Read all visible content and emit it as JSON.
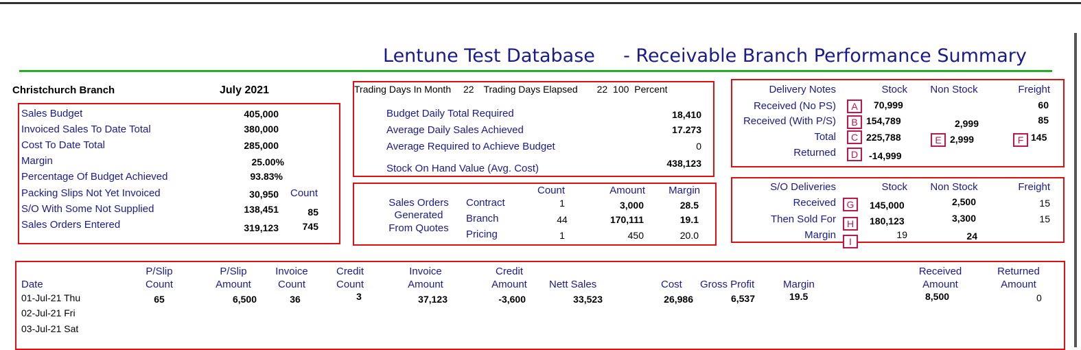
{
  "header": {
    "db_name": "Lentune Test Database",
    "report_title": "- Receivable Branch Performance Summary",
    "accent": "#1a1a8c",
    "rule_color": "#22b022",
    "box_color": "#e01010"
  },
  "branch": {
    "name": "Christchurch",
    "word": "Branch",
    "period": "July 2021"
  },
  "summary": {
    "sales_budget": {
      "label": "Sales Budget",
      "value": "405,000"
    },
    "invoiced": {
      "label": "Invoiced Sales To Date Total",
      "value": "380,000"
    },
    "cost": {
      "label": "Cost To Date Total",
      "value": "285,000"
    },
    "margin": {
      "label": "Margin",
      "value": "25.00%"
    },
    "pct_budget": {
      "label": "Percentage Of Budget Achieved",
      "value": "93.83%"
    },
    "packing": {
      "label": "Packing Slips Not Yet Invoiced",
      "value": "30,950",
      "count_label": "Count"
    },
    "so_not_supplied": {
      "label": "S/O With Some Not Supplied",
      "value": "138,451",
      "count": "85"
    },
    "so_entered": {
      "label": "Sales Orders Entered",
      "value": "319,123",
      "count": "745"
    }
  },
  "trading": {
    "days_in_month_label": "Trading Days In Month",
    "days_in_month": "22",
    "days_elapsed_label": "Trading Days Elapsed",
    "days_elapsed": "22",
    "percent": "100",
    "percent_label": "Percent",
    "budget_daily": {
      "label": "Budget Daily Total Required",
      "value": "18,410"
    },
    "avg_daily": {
      "label": "Average Daily Sales Achieved",
      "value": "17.273"
    },
    "avg_required": {
      "label": "Average Required to Achieve Budget",
      "value": "0"
    },
    "stock_on_hand": {
      "label": "Stock On Hand Value (Avg. Cost)",
      "value": "438,123"
    }
  },
  "quotes": {
    "label_lines": [
      "Sales Orders",
      "Generated",
      "From Quotes"
    ],
    "headers": {
      "count": "Count",
      "amount": "Amount",
      "margin": "Margin"
    },
    "rows": [
      {
        "type": "Contract",
        "count": "1",
        "amount": "3,000",
        "margin": "28.5"
      },
      {
        "type": "Branch",
        "count": "44",
        "amount": "170,111",
        "margin": "19.1"
      },
      {
        "type": "Pricing",
        "count": "1",
        "amount": "450",
        "margin": "20.0"
      }
    ]
  },
  "delivery_notes": {
    "headers": {
      "title": "Delivery Notes",
      "stock": "Stock",
      "non_stock": "Non Stock",
      "freight": "Freight"
    },
    "received_no_ps": {
      "label": "Received (No PS)",
      "tag": "A",
      "stock": "70,999",
      "freight": "60"
    },
    "received_with_ps": {
      "label": "Received (With P/S)",
      "tag": "B",
      "stock": "154,789",
      "non_stock": "2,999",
      "freight": "85"
    },
    "total": {
      "label": "Total",
      "tag": "C",
      "stock": "225,788",
      "ns_tag": "E",
      "non_stock": "2,999",
      "fr_tag": "F",
      "freight": "145"
    },
    "returned": {
      "label": "Returned",
      "tag": "D",
      "stock": "-14,999"
    }
  },
  "so_deliveries": {
    "headers": {
      "title": "S/O Deliveries",
      "stock": "Stock",
      "non_stock": "Non Stock",
      "freight": "Freight"
    },
    "received": {
      "label": "Received",
      "tag": "G",
      "stock": "145,000",
      "non_stock": "2,500",
      "freight": "15"
    },
    "then_sold": {
      "label": "Then Sold For",
      "tag": "H",
      "stock": "180,123",
      "non_stock": "3,300",
      "freight": "15"
    },
    "margin": {
      "label": "Margin",
      "tag": "I",
      "stock": "19",
      "non_stock": "24"
    }
  },
  "daily": {
    "headers": {
      "date": "Date",
      "pslip_count": [
        "P/Slip",
        "Count"
      ],
      "pslip_amount": [
        "P/Slip",
        "Amount"
      ],
      "invoice_count": [
        "Invoice",
        "Count"
      ],
      "credit_count": [
        "Credit",
        "Count"
      ],
      "invoice_amount": [
        "Invoice",
        "Amount"
      ],
      "credit_amount": [
        "Credit",
        "Amount"
      ],
      "nett_sales": "Nett Sales",
      "cost": "Cost",
      "gross_profit": "Gross Profit",
      "margin": "Margin",
      "received_amount": [
        "Received",
        "Amount"
      ],
      "returned_amount": [
        "Returned",
        "Amount"
      ]
    },
    "rows": [
      {
        "date": "01-Jul-21 Thu",
        "pslip_count": "65",
        "pslip_amount": "6,500",
        "invoice_count": "36",
        "credit_count": "3",
        "invoice_amount": "37,123",
        "credit_amount": "-3,600",
        "nett_sales": "33,523",
        "cost": "26,986",
        "gross_profit": "6,537",
        "margin": "19.5",
        "received_amount": "8,500",
        "returned_amount": "0"
      },
      {
        "date": "02-Jul-21 Fri"
      },
      {
        "date": "03-Jul-21 Sat"
      }
    ]
  }
}
